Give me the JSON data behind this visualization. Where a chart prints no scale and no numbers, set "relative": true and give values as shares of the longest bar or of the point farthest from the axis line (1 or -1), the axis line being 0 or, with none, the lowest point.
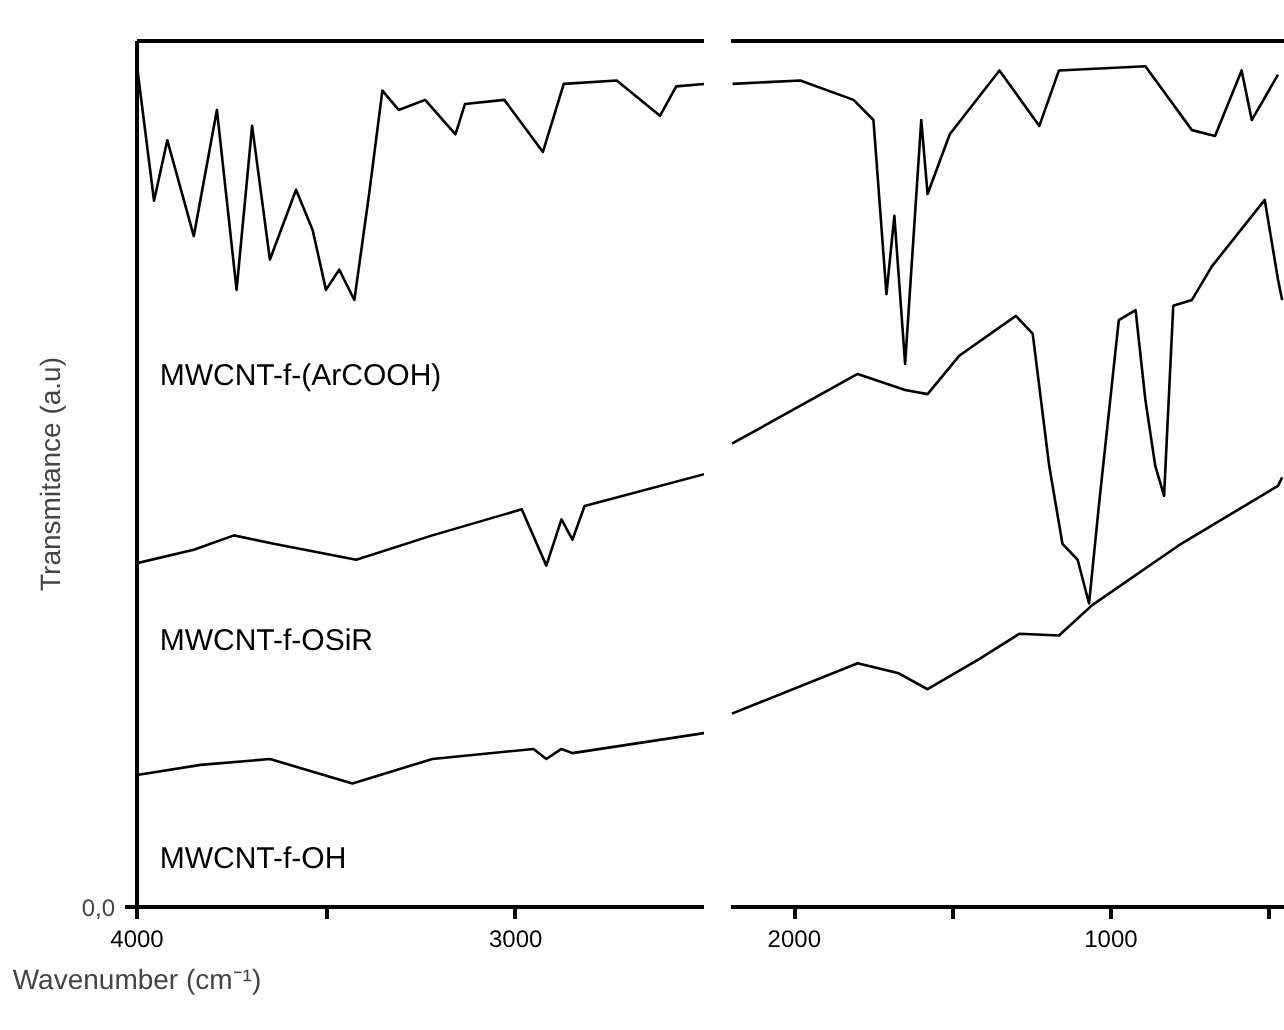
{
  "chart_data": [
    {
      "type": "line",
      "relative": true,
      "xlabel": "Wavenumber (cm⁻¹)",
      "ylabel": "Transmitance (a.u)",
      "xlim": [
        4000,
        2500
      ],
      "xticks": [
        4000,
        {
          "value": 3500,
          "label": null
        },
        3000
      ],
      "grid": false,
      "annotations": [
        "0,0"
      ],
      "series": [
        {
          "name": "MWCNT-f-(ArCOOH)",
          "color": "#000000",
          "x": [
            4000,
            3955,
            3920,
            3850,
            3789,
            3737,
            3696,
            3649,
            3580,
            3536,
            3501,
            3466,
            3426,
            3387,
            3352,
            3309,
            3239,
            3159,
            3134,
            3030,
            2928,
            2873,
            2733,
            2619,
            2576,
            2500
          ],
          "values": [
            1.0,
            0.84,
            0.912,
            0.798,
            0.948,
            0.734,
            0.929,
            0.77,
            0.853,
            0.805,
            0.734,
            0.758,
            0.722,
            0.848,
            0.971,
            0.948,
            0.96,
            0.919,
            0.955,
            0.96,
            0.898,
            0.979,
            0.983,
            0.941,
            0.976,
            0.979
          ]
        },
        {
          "name": "MWCNT-f-OSiR",
          "color": "#000000",
          "x": [
            4000,
            3850,
            3744,
            3639,
            3421,
            3220,
            2984,
            2919,
            2879,
            2850,
            2818,
            2500
          ],
          "values": [
            0.409,
            0.425,
            0.442,
            0.432,
            0.413,
            0.442,
            0.473,
            0.406,
            0.461,
            0.437,
            0.477,
            0.515
          ]
        },
        {
          "name": "MWCNT-f-OH",
          "color": "#000000",
          "x": [
            4000,
            3832,
            3649,
            3431,
            3220,
            2953,
            2919,
            2879,
            2850,
            2500
          ],
          "values": [
            0.157,
            0.169,
            0.176,
            0.147,
            0.176,
            0.188,
            0.176,
            0.188,
            0.183,
            0.207
          ]
        }
      ]
    },
    {
      "type": "line",
      "relative": true,
      "xlim": [
        2200,
        450
      ],
      "xticks": [
        2000,
        {
          "value": 1500,
          "label": null
        },
        1000,
        {
          "value": 500,
          "label": null
        }
      ],
      "grid": false,
      "tick_labels": "x",
      "series": [
        {
          "color": "#000000",
          "x": [
            2195,
            1981,
            1813,
            1750,
            1709,
            1684,
            1650,
            1599,
            1579,
            1509,
            1352,
            1226,
            1164,
            891,
            744,
            671,
            587,
            555,
            472
          ],
          "values": [
            0.979,
            0.983,
            0.96,
            0.936,
            0.729,
            0.822,
            0.646,
            0.936,
            0.848,
            0.919,
            0.995,
            0.929,
            0.995,
            1.0,
            0.924,
            0.917,
            0.995,
            0.936,
            0.99
          ]
        },
        {
          "color": "#000000",
          "x": [
            2197,
            1800,
            1650,
            1579,
            1478,
            1300,
            1247,
            1195,
            1153,
            1105,
            1069,
            1038,
            975,
            922,
            891,
            860,
            832,
            803,
            744,
            681,
            514,
            472,
            459
          ],
          "values": [
            0.551,
            0.634,
            0.615,
            0.61,
            0.656,
            0.703,
            0.682,
            0.525,
            0.432,
            0.413,
            0.361,
            0.477,
            0.698,
            0.71,
            0.603,
            0.525,
            0.489,
            0.715,
            0.722,
            0.762,
            0.841,
            0.746,
            0.722
          ]
        },
        {
          "color": "#000000",
          "x": [
            2197,
            1800,
            1670,
            1579,
            1415,
            1289,
            1164,
            1059,
            786,
            472,
            459
          ],
          "values": [
            0.23,
            0.29,
            0.278,
            0.259,
            0.295,
            0.325,
            0.323,
            0.359,
            0.43,
            0.501,
            0.511
          ]
        }
      ]
    }
  ]
}
